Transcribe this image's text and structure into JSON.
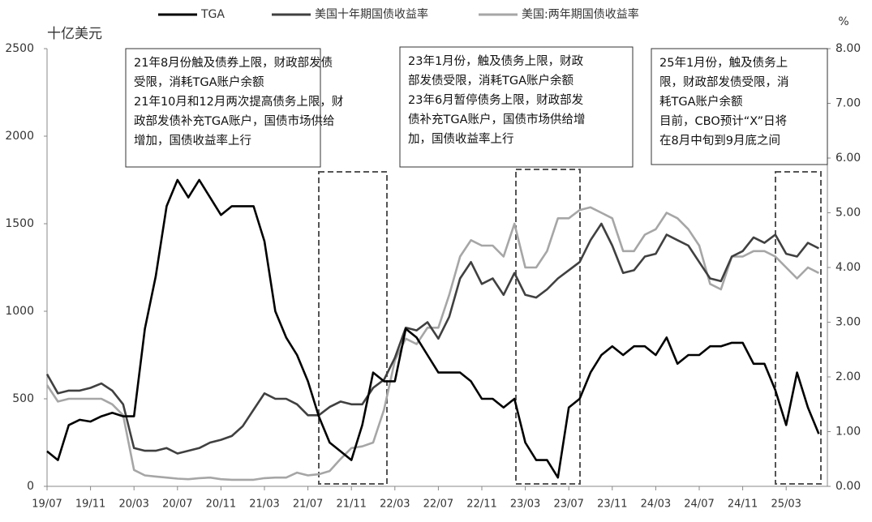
{
  "chart_data": {
    "type": "line",
    "left_axis_label": "十亿美元",
    "right_axis_label": "%",
    "categories": [
      "19/07",
      null,
      null,
      null,
      "19/11",
      null,
      null,
      null,
      "20/03",
      null,
      null,
      null,
      "20/07",
      null,
      null,
      null,
      "20/11",
      null,
      null,
      null,
      "21/03",
      null,
      null,
      null,
      "21/07",
      null,
      null,
      null,
      "21/11",
      null,
      null,
      null,
      "22/03",
      null,
      null,
      null,
      "22/07",
      null,
      null,
      null,
      "22/11",
      null,
      null,
      null,
      "23/03",
      null,
      null,
      null,
      "23/07",
      null,
      null,
      null,
      "23/11",
      null,
      null,
      null,
      "24/03",
      null,
      null,
      null,
      "24/07",
      null,
      null,
      null,
      "24/11",
      null,
      null,
      null,
      "25/03",
      null,
      null,
      null
    ],
    "series": [
      {
        "name": "TGA",
        "color": "#000000",
        "axis": "y",
        "values": [
          200,
          150,
          350,
          380,
          370,
          400,
          420,
          400,
          400,
          900,
          1200,
          1600,
          1750,
          1650,
          1750,
          1650,
          1550,
          1600,
          1600,
          1600,
          1400,
          1000,
          850,
          750,
          600,
          400,
          250,
          200,
          150,
          350,
          650,
          600,
          600,
          900,
          850,
          750,
          650,
          650,
          650,
          600,
          500,
          500,
          450,
          500,
          250,
          150,
          150,
          50,
          450,
          500,
          650,
          750,
          800,
          750,
          800,
          800,
          750,
          850,
          700,
          750,
          750,
          800,
          800,
          820,
          820,
          700,
          700,
          550,
          350,
          650,
          450,
          300
        ]
      },
      {
        "name": "美国十年期国债收益率",
        "color": "#404040",
        "axis": "y2",
        "values": [
          2.05,
          1.7,
          1.75,
          1.75,
          1.8,
          1.88,
          1.75,
          1.5,
          0.7,
          0.65,
          0.65,
          0.7,
          0.6,
          0.65,
          0.7,
          0.8,
          0.85,
          0.92,
          1.1,
          1.4,
          1.7,
          1.6,
          1.6,
          1.5,
          1.3,
          1.3,
          1.45,
          1.55,
          1.5,
          1.5,
          1.8,
          1.95,
          2.35,
          2.9,
          2.85,
          3.0,
          2.7,
          3.1,
          3.8,
          4.1,
          3.7,
          3.8,
          3.5,
          3.9,
          3.5,
          3.45,
          3.6,
          3.8,
          3.95,
          4.1,
          4.5,
          4.8,
          4.4,
          3.9,
          3.95,
          4.2,
          4.25,
          4.6,
          4.5,
          4.4,
          4.1,
          3.8,
          3.75,
          4.2,
          4.3,
          4.55,
          4.45,
          4.6,
          4.25,
          4.2,
          4.45,
          4.35
        ]
      },
      {
        "name": "美国:两年期国债收益率",
        "color": "#a6a6a6",
        "axis": "y2",
        "values": [
          1.85,
          1.55,
          1.6,
          1.6,
          1.6,
          1.6,
          1.5,
          1.3,
          0.3,
          0.2,
          0.18,
          0.16,
          0.14,
          0.13,
          0.15,
          0.16,
          0.13,
          0.12,
          0.12,
          0.12,
          0.15,
          0.16,
          0.16,
          0.25,
          0.2,
          0.22,
          0.28,
          0.5,
          0.7,
          0.73,
          0.8,
          1.4,
          2.3,
          2.7,
          2.6,
          2.9,
          2.9,
          3.5,
          4.2,
          4.5,
          4.4,
          4.4,
          4.2,
          4.8,
          4.0,
          4.0,
          4.3,
          4.9,
          4.9,
          5.05,
          5.1,
          5.0,
          4.9,
          4.3,
          4.3,
          4.6,
          4.7,
          5.0,
          4.9,
          4.7,
          4.4,
          3.7,
          3.6,
          4.2,
          4.2,
          4.3,
          4.3,
          4.2,
          4.0,
          3.8,
          4.0,
          3.9
        ]
      }
    ],
    "ylim": [
      0,
      2500
    ],
    "yticks": [
      0,
      500,
      1000,
      1500,
      2000,
      2500
    ],
    "y2lim": [
      0,
      8
    ],
    "y2ticks": [
      {
        "value": 0,
        "label": "0.00"
      },
      {
        "value": 1,
        "label": "1.00"
      },
      {
        "value": 2,
        "label": "2.00"
      },
      {
        "value": 3,
        "label": "3.00"
      },
      {
        "value": 4,
        "label": "4.00"
      },
      {
        "value": 5,
        "label": "5.00"
      },
      {
        "value": 6,
        "label": "6.00"
      },
      {
        "value": 7,
        "label": "7.00"
      },
      {
        "value": 8,
        "label": "8.00"
      }
    ],
    "grid": false,
    "annotations": [
      [
        "21年8月份触及债券上限，财政部发债",
        "受限，消耗TGA账户余额",
        "21年10月和12月两次提高债务上限，财",
        "政部发债补充TGA账户，国债市场供给",
        "增加，国债收益率上行"
      ],
      [
        "23年1月份，触及债务上限，财政",
        "部发债受限，消耗TGA账户余额",
        "23年6月暂停债务上限，财政部发",
        "债补充TGA账户，国债市场供给增",
        "加，国债收益率上行"
      ],
      [
        "25年1月份，触及债务上",
        "限，财政部发债受限，消",
        "耗TGA账户余额",
        "目前，CBO预计“X”日将",
        "在8月中旬到9月底之间"
      ]
    ]
  }
}
